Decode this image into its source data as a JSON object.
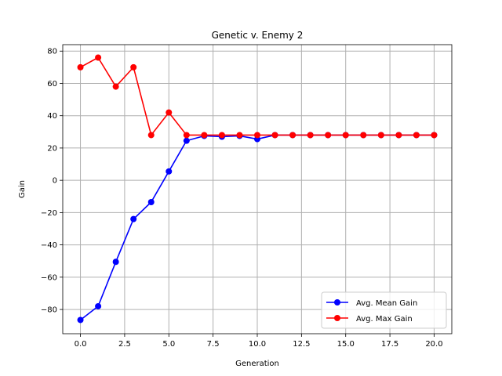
{
  "chart_data": {
    "type": "line",
    "title": "Genetic v. Enemy 2",
    "xlabel": "Generation",
    "ylabel": "Gain",
    "xlim": [
      -1.0,
      21.0
    ],
    "ylim": [
      -95,
      84
    ],
    "xticks": [
      0.0,
      2.5,
      5.0,
      7.5,
      10.0,
      12.5,
      15.0,
      17.5,
      20.0
    ],
    "xtick_labels": [
      "0.0",
      "2.5",
      "5.0",
      "7.5",
      "10.0",
      "12.5",
      "15.0",
      "17.5",
      "20.0"
    ],
    "yticks": [
      -80,
      -60,
      -40,
      -20,
      0,
      20,
      40,
      60,
      80
    ],
    "ytick_labels": [
      "−80",
      "−60",
      "−40",
      "−20",
      "0",
      "20",
      "40",
      "60",
      "80"
    ],
    "grid": true,
    "legend_position": "lower-right",
    "x": [
      0,
      1,
      2,
      3,
      4,
      5,
      6,
      7,
      8,
      9,
      10,
      11,
      12,
      13,
      14,
      15,
      16,
      17,
      18,
      19,
      20
    ],
    "series": [
      {
        "name": "Avg. Mean Gain",
        "color": "#0000ff",
        "marker": "circle",
        "values": [
          -86.5,
          -78,
          -50.5,
          -24,
          -13.5,
          5.5,
          24.5,
          27.5,
          27,
          27.5,
          25.5,
          28,
          28,
          28,
          28,
          28,
          28,
          28,
          28,
          28,
          28
        ]
      },
      {
        "name": "Avg. Max Gain",
        "color": "#ff0000",
        "marker": "circle",
        "values": [
          70,
          76,
          58,
          70,
          28,
          42,
          28,
          28,
          28,
          28,
          28,
          28,
          28,
          28,
          28,
          28,
          28,
          28,
          28,
          28,
          28
        ]
      }
    ]
  }
}
